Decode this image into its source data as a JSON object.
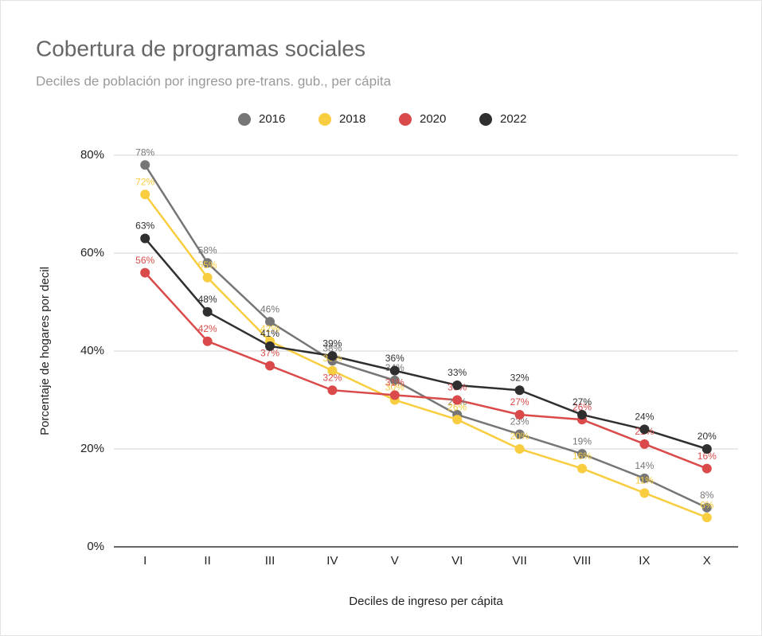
{
  "chart_data": {
    "type": "line",
    "title": "Cobertura de programas sociales",
    "subtitle": "Deciles de población por ingreso pre-trans. gub., per cápita",
    "x_label": "Deciles de ingreso per cápita",
    "y_label": "Porcentaje de hogares por decil",
    "categories": [
      "I",
      "II",
      "III",
      "IV",
      "V",
      "VI",
      "VII",
      "VIII",
      "IX",
      "X"
    ],
    "ylim": [
      0,
      80
    ],
    "yticks": [
      {
        "value": 0,
        "label": "0%"
      },
      {
        "value": 20,
        "label": "20%"
      },
      {
        "value": 40,
        "label": "40%"
      },
      {
        "value": 60,
        "label": "60%"
      },
      {
        "value": 80,
        "label": "80%"
      }
    ],
    "grid": true,
    "legend": "top",
    "series": [
      {
        "name": "2016",
        "color": "#767676",
        "values": [
          78,
          58,
          46,
          38,
          34,
          27,
          23,
          19,
          14,
          8
        ],
        "value_labels": [
          "78%",
          "58%",
          "46%",
          "38%",
          "34%",
          "27%",
          "23%",
          "19%",
          "14%",
          "8%"
        ]
      },
      {
        "name": "2018",
        "color": "#f8cd40",
        "values": [
          72,
          55,
          42,
          36,
          30,
          26,
          20,
          16,
          11,
          6
        ],
        "value_labels": [
          "72%",
          "55%",
          "42%",
          "36%",
          "30%",
          "26%",
          "20%",
          "16%",
          "11%",
          "6%"
        ]
      },
      {
        "name": "2020",
        "color": "#da4a4a",
        "values": [
          56,
          42,
          37,
          32,
          31,
          30,
          27,
          26,
          21,
          16
        ],
        "value_labels": [
          "56%",
          "42%",
          "37%",
          "32%",
          "31%",
          "30%",
          "27%",
          "26%",
          "21%",
          "16%"
        ]
      },
      {
        "name": "2022",
        "color": "#2f2f2f",
        "values": [
          63,
          48,
          41,
          39,
          36,
          33,
          32,
          27,
          24,
          20
        ],
        "value_labels": [
          "63%",
          "48%",
          "41%",
          "39%",
          "36%",
          "33%",
          "32%",
          "27%",
          "24%",
          "20%"
        ]
      }
    ]
  }
}
